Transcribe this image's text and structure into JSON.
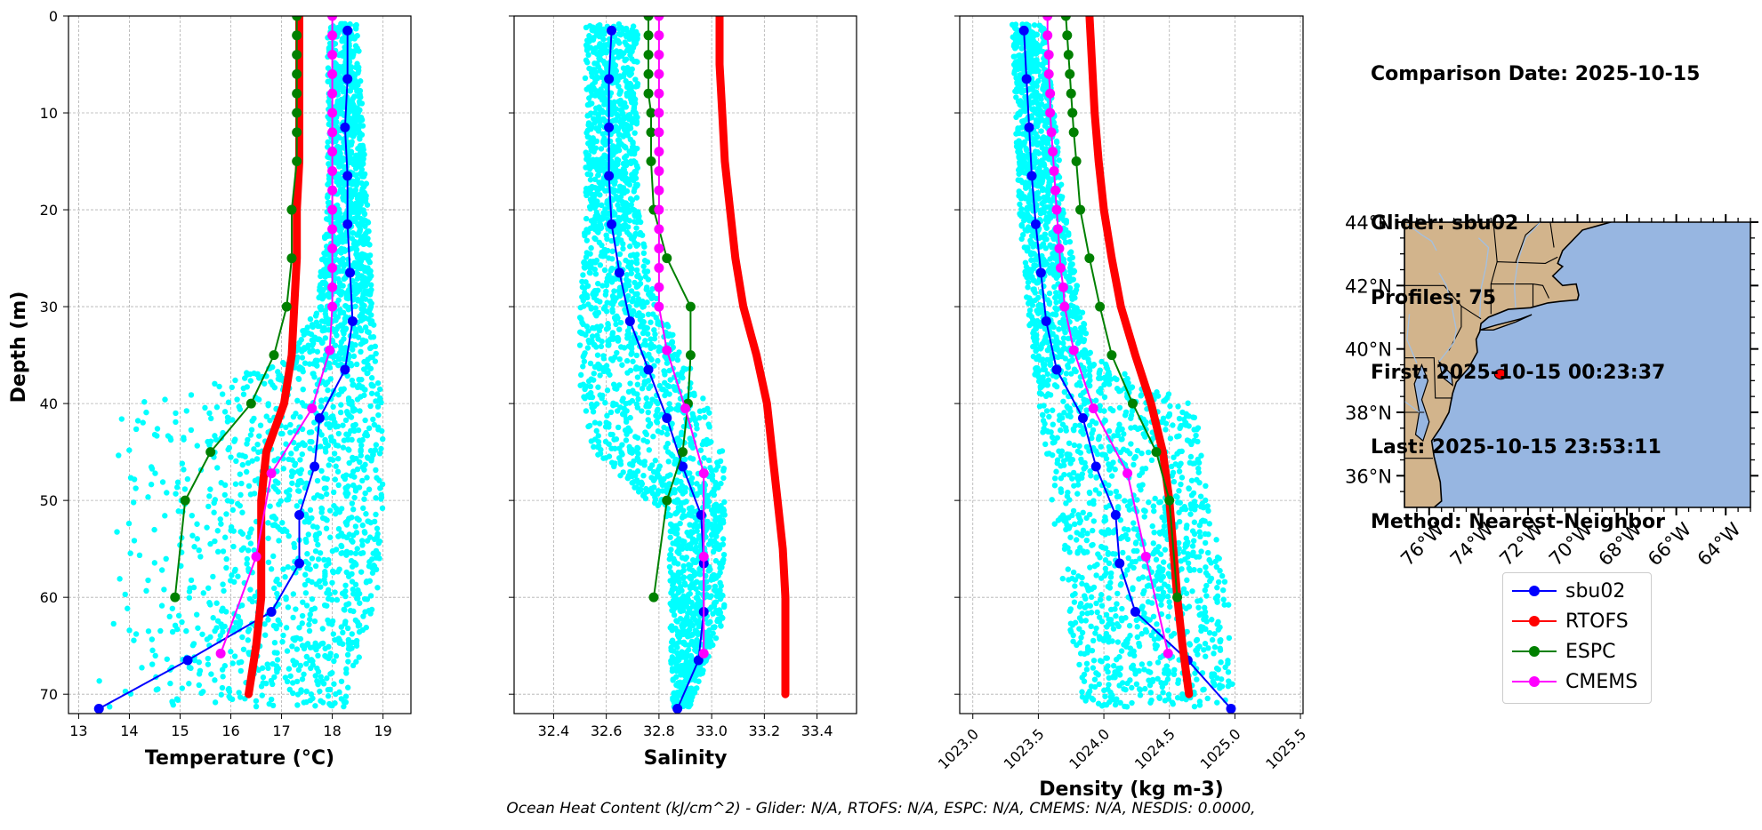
{
  "info": {
    "comparison_date": "Comparison Date: 2025-10-15",
    "glider": "Glider: sbu02",
    "profiles": "Profiles: 75",
    "first": "First: 2025-10-15 00:23:37",
    "last": "Last: 2025-10-15 23:53:11",
    "method": "Method: Nearest-Neighbor"
  },
  "footer": "Ocean Heat Content (kJ/cm^2) - Glider: N/A,  RTOFS: N/A,  ESPC: N/A,  CMEMS: N/A,  NESDIS: 0.0000,",
  "colors": {
    "sbu02": "#0000ff",
    "RTOFS": "#ff0000",
    "ESPC": "#008000",
    "CMEMS": "#ff00ff",
    "scatter": "#00ffff",
    "land": "#d2b48c",
    "ocean": "#97b6e1"
  },
  "legend": [
    {
      "name": "sbu02",
      "color": "#0000ff"
    },
    {
      "name": "RTOFS",
      "color": "#ff0000"
    },
    {
      "name": "ESPC",
      "color": "#008000"
    },
    {
      "name": "CMEMS",
      "color": "#ff00ff"
    }
  ],
  "chart_data": [
    {
      "type": "line",
      "title": "",
      "xlabel": "Temperature (°C)",
      "ylabel": "Depth (m)",
      "xlim": [
        12.8,
        19.55
      ],
      "ylim": [
        72,
        0
      ],
      "xticks": [
        "13",
        "14",
        "15",
        "16",
        "17",
        "18",
        "19"
      ],
      "yticks": [
        "0",
        "10",
        "20",
        "30",
        "40",
        "50",
        "60",
        "70"
      ],
      "grid": true,
      "series": [
        {
          "name": "sbu02",
          "marker": true,
          "depth": [
            1.5,
            6.5,
            11.5,
            16.5,
            21.5,
            26.5,
            31.5,
            36.5,
            41.5,
            46.5,
            51.5,
            56.5,
            61.5,
            66.5,
            71.5
          ],
          "values": [
            18.3,
            18.3,
            18.25,
            18.3,
            18.3,
            18.35,
            18.4,
            18.25,
            17.75,
            17.65,
            17.35,
            17.35,
            16.8,
            15.15,
            13.4
          ]
        },
        {
          "name": "RTOFS",
          "marker": false,
          "depth": [
            0,
            5,
            10,
            15,
            20,
            25,
            30,
            35,
            40,
            45,
            50,
            55,
            60,
            65,
            70
          ],
          "values": [
            17.35,
            17.35,
            17.35,
            17.35,
            17.3,
            17.3,
            17.25,
            17.2,
            17.05,
            16.7,
            16.6,
            16.6,
            16.6,
            16.5,
            16.35
          ]
        },
        {
          "name": "ESPC",
          "marker": true,
          "depth": [
            0,
            2,
            4,
            6,
            8,
            10,
            12,
            15,
            20,
            25,
            30,
            35,
            40,
            45,
            50,
            60
          ],
          "values": [
            17.3,
            17.3,
            17.3,
            17.3,
            17.3,
            17.3,
            17.3,
            17.3,
            17.2,
            17.2,
            17.1,
            16.85,
            16.4,
            15.6,
            15.1,
            14.9
          ]
        },
        {
          "name": "CMEMS",
          "marker": true,
          "depth": [
            0,
            2,
            4,
            6,
            8,
            10,
            12,
            14,
            16,
            18,
            20,
            22,
            24,
            26,
            28,
            30,
            34.5,
            40.5,
            47.2,
            55.8,
            65.8
          ],
          "values": [
            18.0,
            18.0,
            18.0,
            18.0,
            18.0,
            18.0,
            18.0,
            18.0,
            18.0,
            18.0,
            18.0,
            18.0,
            18.0,
            18.0,
            18.0,
            18.0,
            17.95,
            17.6,
            16.8,
            16.5,
            15.8
          ]
        }
      ]
    },
    {
      "type": "line",
      "title": "",
      "xlabel": "Salinity",
      "ylabel": "",
      "xlim": [
        32.25,
        33.55
      ],
      "ylim": [
        72,
        0
      ],
      "xticks": [
        "32.4",
        "32.6",
        "32.8",
        "33.0",
        "33.2",
        "33.4"
      ],
      "grid": true,
      "series": [
        {
          "name": "sbu02",
          "marker": true,
          "depth": [
            1.5,
            6.5,
            11.5,
            16.5,
            21.5,
            26.5,
            31.5,
            36.5,
            41.5,
            46.5,
            51.5,
            56.5,
            61.5,
            66.5,
            71.5
          ],
          "values": [
            32.62,
            32.61,
            32.61,
            32.61,
            32.62,
            32.65,
            32.69,
            32.76,
            32.83,
            32.89,
            32.96,
            32.97,
            32.97,
            32.95,
            32.87
          ]
        },
        {
          "name": "RTOFS",
          "marker": false,
          "depth": [
            0,
            5,
            10,
            15,
            20,
            25,
            30,
            35,
            40,
            45,
            50,
            55,
            60,
            65,
            70
          ],
          "values": [
            33.03,
            33.03,
            33.04,
            33.05,
            33.07,
            33.09,
            33.12,
            33.17,
            33.21,
            33.23,
            33.25,
            33.27,
            33.28,
            33.28,
            33.28
          ]
        },
        {
          "name": "ESPC",
          "marker": true,
          "depth": [
            0,
            2,
            4,
            6,
            8,
            10,
            12,
            15,
            20,
            25,
            30,
            35,
            40,
            45,
            50,
            60
          ],
          "values": [
            32.76,
            32.76,
            32.76,
            32.76,
            32.76,
            32.77,
            32.77,
            32.77,
            32.78,
            32.83,
            32.92,
            32.92,
            32.91,
            32.89,
            32.83,
            32.78
          ]
        },
        {
          "name": "CMEMS",
          "marker": true,
          "depth": [
            0,
            2,
            4,
            6,
            8,
            10,
            12,
            14,
            16,
            18,
            20,
            22,
            24,
            26,
            28,
            30,
            34.5,
            40.5,
            47.2,
            55.8,
            65.8
          ],
          "values": [
            32.8,
            32.8,
            32.8,
            32.8,
            32.8,
            32.8,
            32.8,
            32.8,
            32.8,
            32.8,
            32.8,
            32.8,
            32.8,
            32.8,
            32.8,
            32.8,
            32.83,
            32.9,
            32.97,
            32.97,
            32.97
          ]
        }
      ]
    },
    {
      "type": "line",
      "title": "",
      "xlabel": "Density (kg m-3)",
      "ylabel": "",
      "xlim": [
        1022.9,
        1025.52
      ],
      "ylim": [
        72,
        0
      ],
      "xticks": [
        "1023.0",
        "1023.5",
        "1024.0",
        "1024.5",
        "1025.0",
        "1025.5"
      ],
      "grid": true,
      "series": [
        {
          "name": "sbu02",
          "marker": true,
          "depth": [
            1.5,
            6.5,
            11.5,
            16.5,
            21.5,
            26.5,
            31.5,
            36.5,
            41.5,
            46.5,
            51.5,
            56.5,
            61.5,
            66.5,
            71.5
          ],
          "values": [
            1023.39,
            1023.41,
            1023.43,
            1023.45,
            1023.48,
            1023.52,
            1023.56,
            1023.64,
            1023.84,
            1023.94,
            1024.09,
            1024.12,
            1024.24,
            1024.64,
            1024.97
          ]
        },
        {
          "name": "RTOFS",
          "marker": false,
          "depth": [
            0,
            5,
            10,
            15,
            20,
            25,
            30,
            35,
            40,
            45,
            50,
            55,
            60,
            65,
            70
          ],
          "values": [
            1023.89,
            1023.91,
            1023.93,
            1023.96,
            1024.0,
            1024.06,
            1024.13,
            1024.24,
            1024.36,
            1024.45,
            1024.5,
            1024.53,
            1024.56,
            1024.6,
            1024.65
          ]
        },
        {
          "name": "ESPC",
          "marker": true,
          "depth": [
            0,
            2,
            4,
            6,
            8,
            10,
            12,
            15,
            20,
            25,
            30,
            35,
            40,
            45,
            50,
            60
          ],
          "values": [
            1023.71,
            1023.72,
            1023.73,
            1023.74,
            1023.75,
            1023.76,
            1023.77,
            1023.79,
            1023.82,
            1023.89,
            1023.97,
            1024.06,
            1024.22,
            1024.4,
            1024.5,
            1024.56
          ]
        },
        {
          "name": "CMEMS",
          "marker": true,
          "depth": [
            0,
            2,
            4,
            6,
            8,
            10,
            12,
            14,
            16,
            18,
            20,
            22,
            24,
            26,
            28,
            30,
            34.5,
            40.5,
            47.2,
            55.8,
            65.8
          ],
          "values": [
            1023.57,
            1023.57,
            1023.58,
            1023.58,
            1023.59,
            1023.59,
            1023.6,
            1023.61,
            1023.62,
            1023.63,
            1023.64,
            1023.65,
            1023.66,
            1023.67,
            1023.69,
            1023.7,
            1023.77,
            1023.92,
            1024.18,
            1024.32,
            1024.49
          ]
        }
      ]
    },
    {
      "type": "map",
      "title": "",
      "lon_range": [
        -77,
        -63
      ],
      "lat_range": [
        35,
        44
      ],
      "xticks": [
        "76°W",
        "74°W",
        "72°W",
        "70°W",
        "68°W",
        "66°W",
        "64°W"
      ],
      "yticks": [
        "36°N",
        "38°N",
        "40°N",
        "42°N",
        "44°N"
      ],
      "points": [
        {
          "name": "sbu02",
          "lon": -73.1,
          "lat": 39.2
        }
      ]
    }
  ]
}
